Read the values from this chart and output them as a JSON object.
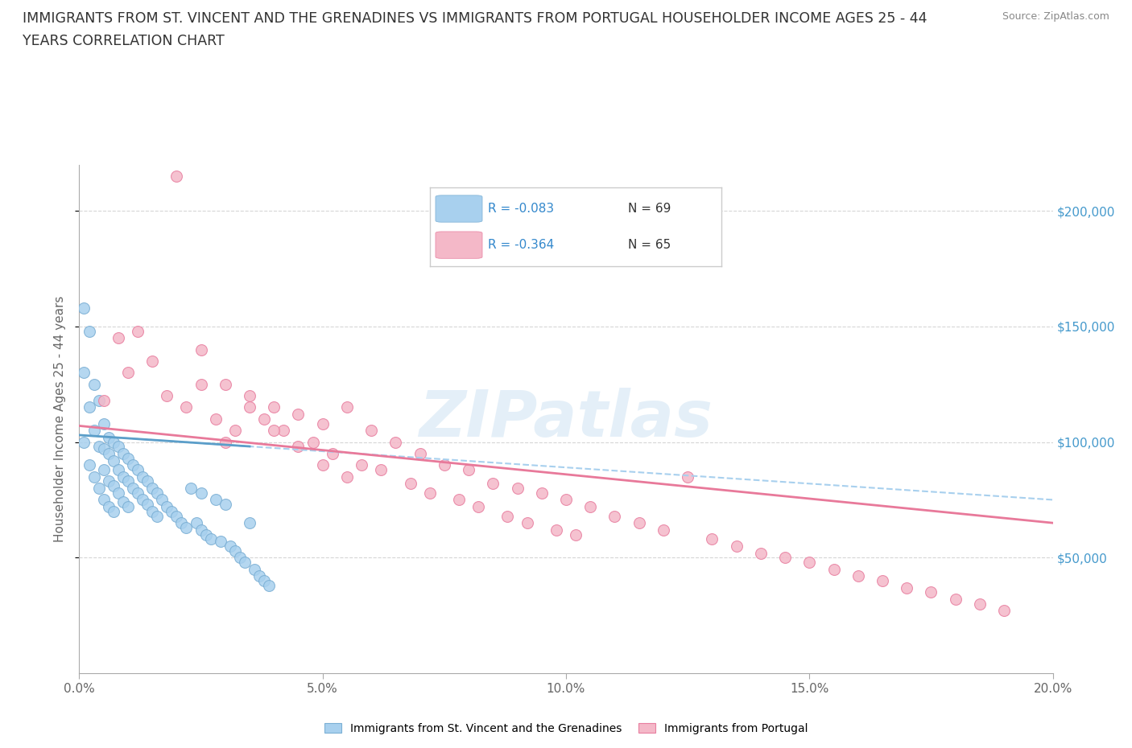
{
  "title_line1": "IMMIGRANTS FROM ST. VINCENT AND THE GRENADINES VS IMMIGRANTS FROM PORTUGAL HOUSEHOLDER INCOME AGES 25 - 44",
  "title_line2": "YEARS CORRELATION CHART",
  "source_text": "Source: ZipAtlas.com",
  "ylabel": "Householder Income Ages 25 - 44 years",
  "xlim": [
    0.0,
    0.2
  ],
  "ylim": [
    0,
    220000
  ],
  "xticks": [
    0.0,
    0.05,
    0.1,
    0.15,
    0.2
  ],
  "xtick_labels": [
    "0.0%",
    "5.0%",
    "10.0%",
    "15.0%",
    "20.0%"
  ],
  "ytick_labels": [
    "$50,000",
    "$100,000",
    "$150,000",
    "$200,000"
  ],
  "ytick_values": [
    50000,
    100000,
    150000,
    200000
  ],
  "watermark": "ZIPatlas",
  "legend_r1": "R = -0.083",
  "legend_n1": "N = 69",
  "legend_r2": "R = -0.364",
  "legend_n2": "N = 65",
  "color_blue": "#a8d0ee",
  "color_blue_edge": "#7bafd4",
  "color_pink": "#f4b8c8",
  "color_pink_edge": "#e87fa0",
  "color_blue_line_solid": "#5b9ec9",
  "color_blue_line_dash": "#a8d0ee",
  "color_pink_line_solid": "#e8799a",
  "label1": "Immigrants from St. Vincent and the Grenadines",
  "label2": "Immigrants from Portugal",
  "sv_x": [
    0.001,
    0.001,
    0.001,
    0.002,
    0.002,
    0.002,
    0.003,
    0.003,
    0.003,
    0.004,
    0.004,
    0.004,
    0.005,
    0.005,
    0.005,
    0.005,
    0.006,
    0.006,
    0.006,
    0.006,
    0.007,
    0.007,
    0.007,
    0.007,
    0.008,
    0.008,
    0.008,
    0.009,
    0.009,
    0.009,
    0.01,
    0.01,
    0.01,
    0.011,
    0.011,
    0.012,
    0.012,
    0.013,
    0.013,
    0.014,
    0.014,
    0.015,
    0.015,
    0.016,
    0.016,
    0.017,
    0.018,
    0.019,
    0.02,
    0.021,
    0.022,
    0.023,
    0.024,
    0.025,
    0.025,
    0.026,
    0.027,
    0.028,
    0.029,
    0.03,
    0.031,
    0.032,
    0.033,
    0.034,
    0.035,
    0.036,
    0.037,
    0.038,
    0.039
  ],
  "sv_y": [
    158000,
    130000,
    100000,
    148000,
    115000,
    90000,
    125000,
    105000,
    85000,
    118000,
    98000,
    80000,
    108000,
    97000,
    88000,
    75000,
    102000,
    95000,
    83000,
    72000,
    100000,
    92000,
    81000,
    70000,
    98000,
    88000,
    78000,
    95000,
    85000,
    74000,
    93000,
    83000,
    72000,
    90000,
    80000,
    88000,
    78000,
    85000,
    75000,
    83000,
    73000,
    80000,
    70000,
    78000,
    68000,
    75000,
    72000,
    70000,
    68000,
    65000,
    63000,
    80000,
    65000,
    62000,
    78000,
    60000,
    58000,
    75000,
    57000,
    73000,
    55000,
    53000,
    50000,
    48000,
    65000,
    45000,
    42000,
    40000,
    38000
  ],
  "pt_x": [
    0.005,
    0.008,
    0.01,
    0.012,
    0.015,
    0.018,
    0.02,
    0.022,
    0.025,
    0.028,
    0.03,
    0.032,
    0.035,
    0.038,
    0.04,
    0.042,
    0.045,
    0.048,
    0.05,
    0.052,
    0.055,
    0.058,
    0.06,
    0.062,
    0.065,
    0.068,
    0.07,
    0.072,
    0.075,
    0.078,
    0.08,
    0.082,
    0.085,
    0.088,
    0.09,
    0.092,
    0.095,
    0.098,
    0.1,
    0.102,
    0.105,
    0.11,
    0.115,
    0.12,
    0.125,
    0.13,
    0.135,
    0.14,
    0.145,
    0.15,
    0.155,
    0.16,
    0.165,
    0.17,
    0.175,
    0.18,
    0.185,
    0.19,
    0.025,
    0.03,
    0.035,
    0.04,
    0.045,
    0.05,
    0.055
  ],
  "pt_y": [
    118000,
    145000,
    130000,
    148000,
    135000,
    120000,
    215000,
    115000,
    140000,
    110000,
    125000,
    105000,
    120000,
    110000,
    115000,
    105000,
    112000,
    100000,
    108000,
    95000,
    115000,
    90000,
    105000,
    88000,
    100000,
    82000,
    95000,
    78000,
    90000,
    75000,
    88000,
    72000,
    82000,
    68000,
    80000,
    65000,
    78000,
    62000,
    75000,
    60000,
    72000,
    68000,
    65000,
    62000,
    85000,
    58000,
    55000,
    52000,
    50000,
    48000,
    45000,
    42000,
    40000,
    37000,
    35000,
    32000,
    30000,
    27000,
    125000,
    100000,
    115000,
    105000,
    98000,
    90000,
    85000
  ],
  "sv_trendline_x": [
    0.0,
    0.2
  ],
  "sv_trendline_y": [
    103000,
    75000
  ],
  "pt_trendline_x": [
    0.0,
    0.2
  ],
  "pt_trendline_y": [
    107000,
    65000
  ]
}
